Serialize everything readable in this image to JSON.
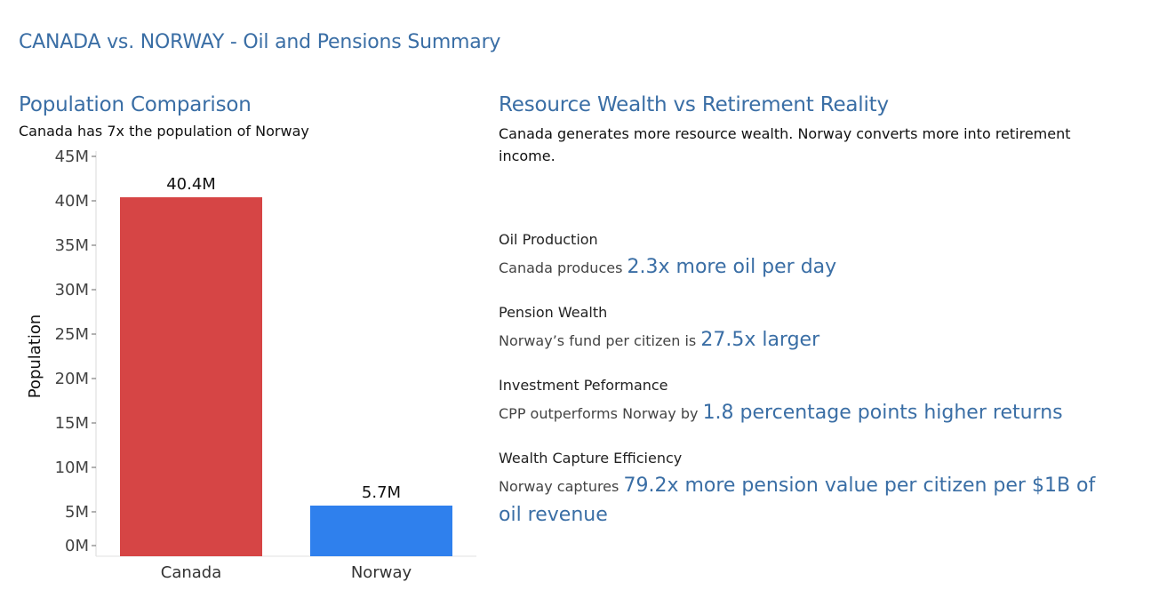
{
  "page": {
    "title": "CANADA vs. NORWAY - Oil and Pensions Summary"
  },
  "left_panel": {
    "title": "Population Comparison",
    "subtitle": "Canada has 7x the population of Norway"
  },
  "right_panel": {
    "title": "Resource Wealth vs Retirement Reality",
    "subtitle": "Canada generates more resource wealth. Norway converts more into retirement income.",
    "metrics": [
      {
        "label": "Oil Production",
        "prefix": "Canada produces",
        "highlight": "2.3x more oil per day"
      },
      {
        "label": "Pension Wealth",
        "prefix": "Norway’s fund per citizen is",
        "highlight": "27.5x larger"
      },
      {
        "label": "Investment Peformance",
        "prefix": "CPP outperforms Norway by",
        "highlight": "1.8 percentage points higher returns"
      },
      {
        "label": "Wealth Capture Efficiency",
        "prefix": "Norway captures",
        "highlight": "79.2x more pension value per citizen per $1B of oil revenue"
      }
    ]
  },
  "chart_data": {
    "type": "bar",
    "categories": [
      "Canada",
      "Norway"
    ],
    "values": [
      40.4,
      5.7
    ],
    "value_labels": [
      "40.4M",
      "5.7M"
    ],
    "colors": [
      "#d64545",
      "#2f80ed"
    ],
    "ylabel": "Population",
    "xlabel": "",
    "ylim": [
      0,
      45
    ],
    "y_ticks": [
      0,
      5,
      10,
      15,
      20,
      25,
      30,
      35,
      40,
      45
    ],
    "y_tick_labels": [
      "0M",
      "5M",
      "10M",
      "15M",
      "20M",
      "25M",
      "30M",
      "35M",
      "40M",
      "45M"
    ],
    "grid": false,
    "legend": "none"
  }
}
